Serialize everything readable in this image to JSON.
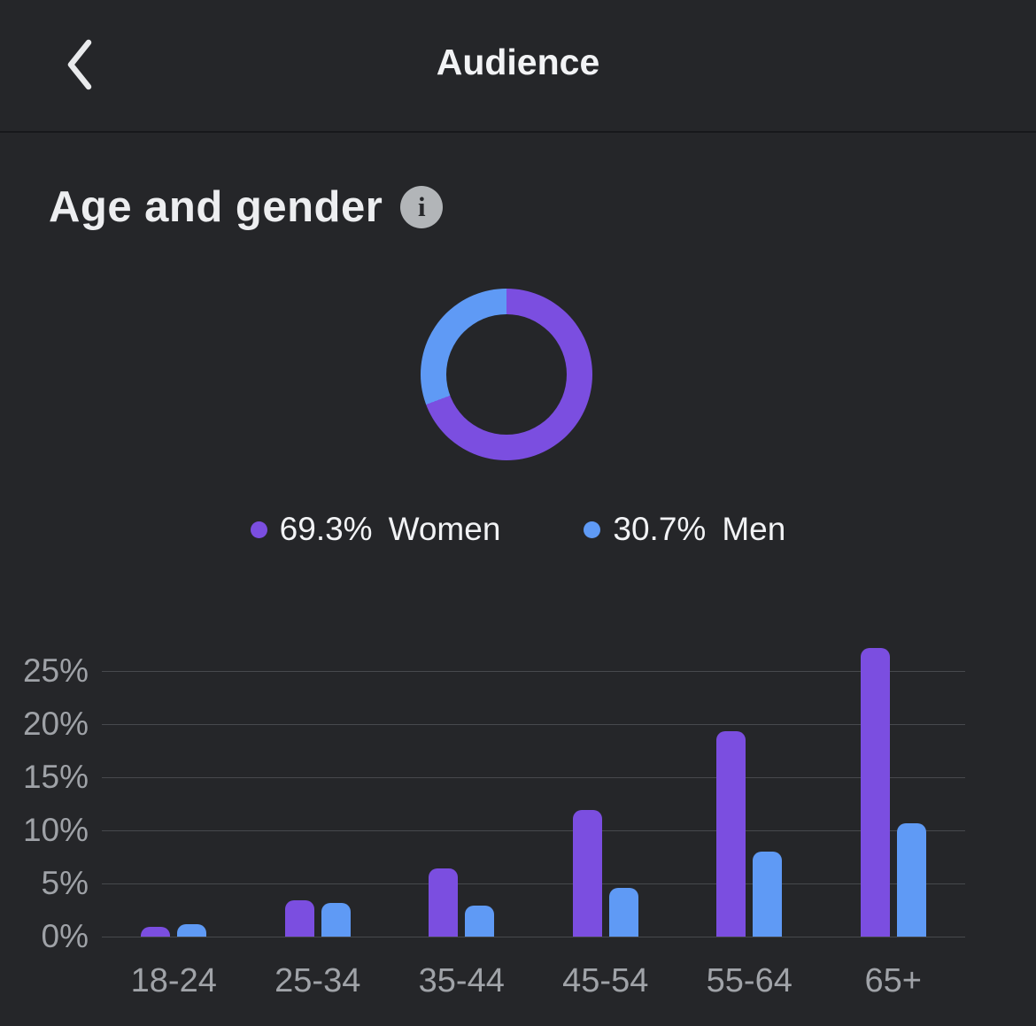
{
  "header": {
    "title": "Audience"
  },
  "section": {
    "title": "Age and gender",
    "info_icon": "info-circle"
  },
  "legend": {
    "women": {
      "pct": "69.3%",
      "label": "Women"
    },
    "men": {
      "pct": "30.7%",
      "label": "Men"
    }
  },
  "colors": {
    "women": "#7B4EE0",
    "men": "#5F9AF5",
    "background": "#252629",
    "gridline": "#47494D",
    "axis_text": "#9FA2A7",
    "text": "#F2F3F5",
    "info_badge": "#B2B5B8"
  },
  "chart_data": [
    {
      "type": "pie",
      "donut": true,
      "title": "Gender split",
      "start_angle_deg": 0,
      "series": [
        {
          "name": "Women",
          "value": 69.3,
          "color": "#7B4EE0"
        },
        {
          "name": "Men",
          "value": 30.7,
          "color": "#5F9AF5"
        }
      ],
      "legend_position": "bottom"
    },
    {
      "type": "bar",
      "title": "Age and gender distribution",
      "categories": [
        "18-24",
        "25-34",
        "35-44",
        "45-54",
        "55-64",
        "65+"
      ],
      "series": [
        {
          "name": "Women",
          "color": "#7B4EE0",
          "values": [
            0.9,
            3.4,
            6.4,
            11.9,
            19.3,
            27.2
          ]
        },
        {
          "name": "Men",
          "color": "#5F9AF5",
          "values": [
            1.2,
            3.2,
            2.9,
            4.6,
            8.0,
            10.7
          ]
        }
      ],
      "xlabel": "",
      "ylabel": "",
      "y_ticks": [
        0,
        5,
        10,
        15,
        20,
        25
      ],
      "y_tick_labels": [
        "0%",
        "5%",
        "10%",
        "15%",
        "20%",
        "25%"
      ],
      "ylim": [
        0,
        29
      ],
      "grid": true,
      "legend_position": "none"
    }
  ]
}
